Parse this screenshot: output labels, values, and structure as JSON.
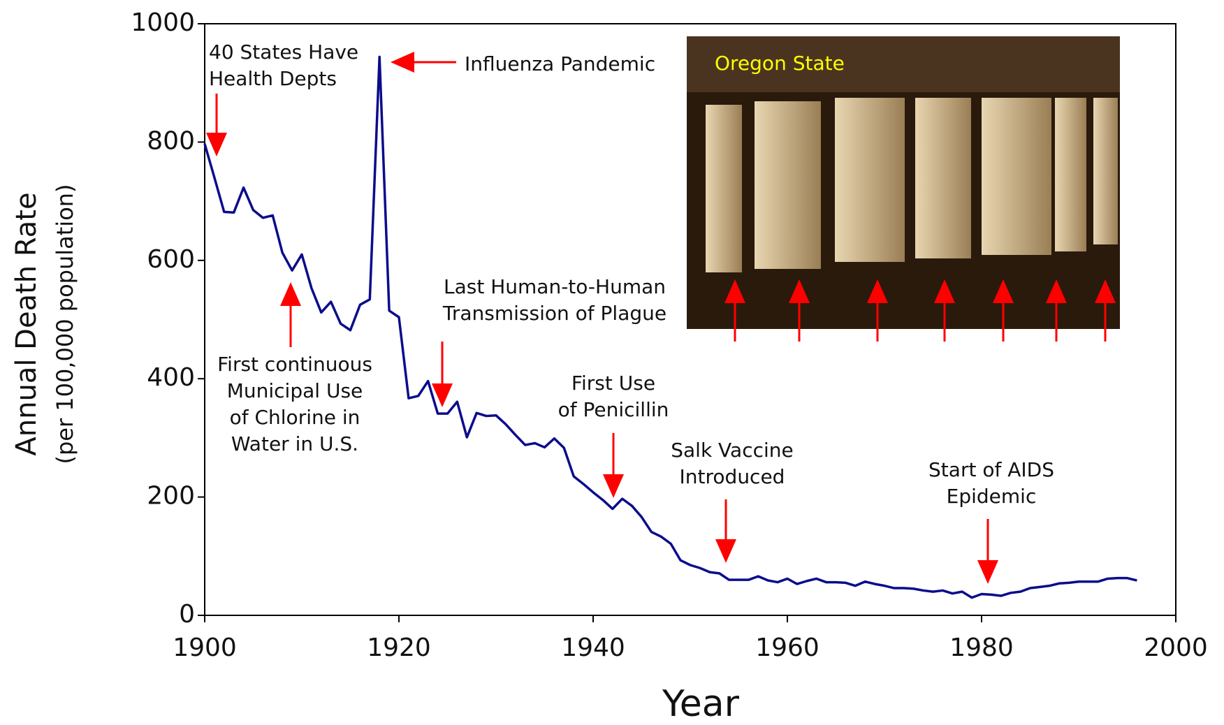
{
  "chart_data": {
    "type": "line",
    "xlabel": "Year",
    "ylabel": "Annual Death Rate",
    "ylabel_sub": "(per 100,000 population)",
    "x": [
      1900,
      1901,
      1902,
      1903,
      1904,
      1905,
      1906,
      1907,
      1908,
      1909,
      1910,
      1911,
      1912,
      1913,
      1914,
      1915,
      1916,
      1917,
      1918,
      1919,
      1920,
      1921,
      1922,
      1923,
      1924,
      1925,
      1926,
      1927,
      1928,
      1929,
      1930,
      1931,
      1932,
      1933,
      1934,
      1935,
      1936,
      1937,
      1938,
      1939,
      1940,
      1941,
      1942,
      1943,
      1944,
      1945,
      1946,
      1947,
      1948,
      1949,
      1950,
      1951,
      1952,
      1953,
      1954,
      1955,
      1956,
      1957,
      1958,
      1959,
      1960,
      1961,
      1962,
      1963,
      1964,
      1965,
      1966,
      1967,
      1968,
      1969,
      1970,
      1971,
      1972,
      1973,
      1974,
      1975,
      1976,
      1977,
      1978,
      1979,
      1980,
      1981,
      1982,
      1983,
      1984,
      1985,
      1986,
      1987,
      1988,
      1989,
      1990,
      1991,
      1992,
      1993,
      1994,
      1995,
      1996
    ],
    "series": [
      {
        "color": "#0c0c8c",
        "values": [
          797,
          740,
          682,
          681,
          723,
          685,
          672,
          676,
          613,
          583,
          610,
          553,
          512,
          530,
          493,
          482,
          525,
          534,
          944,
          515,
          504,
          367,
          371,
          396,
          341,
          341,
          361,
          301,
          342,
          337,
          338,
          323,
          305,
          288,
          291,
          284,
          299,
          283,
          235,
          222,
          208,
          195,
          180,
          197,
          185,
          166,
          141,
          133,
          121,
          93,
          85,
          80,
          73,
          71,
          60,
          60,
          60,
          66,
          59,
          56,
          62,
          53,
          58,
          62,
          56,
          56,
          55,
          50,
          57,
          53,
          50,
          46,
          46,
          45,
          42,
          40,
          42,
          37,
          40,
          30,
          36,
          35,
          33,
          38,
          40,
          46,
          48,
          50,
          54,
          55,
          57,
          57,
          57,
          62,
          63,
          63,
          59
        ]
      }
    ],
    "xlim": [
      1900,
      2000
    ],
    "xticks": [
      1900,
      1920,
      1940,
      1960,
      1980,
      2000
    ],
    "ylim": [
      0,
      1000
    ],
    "yticks": [
      0,
      200,
      400,
      600,
      800,
      1000
    ],
    "annotations": [
      {
        "lines": [
          "40 States Have",
          "Health Depts"
        ]
      },
      {
        "lines": [
          "Influenza Pandemic"
        ]
      },
      {
        "lines": [
          "First continuous",
          "Municipal Use",
          "of Chlorine in",
          "Water in U.S."
        ]
      },
      {
        "lines": [
          "Last Human-to-Human",
          "Transmission of Plague"
        ]
      },
      {
        "lines": [
          "First Use",
          "of Penicillin"
        ]
      },
      {
        "lines": [
          "Salk Vaccine",
          "Introduced"
        ]
      },
      {
        "lines": [
          "Start of AIDS",
          "Epidemic"
        ]
      }
    ],
    "inset_label": "Oregon State"
  }
}
